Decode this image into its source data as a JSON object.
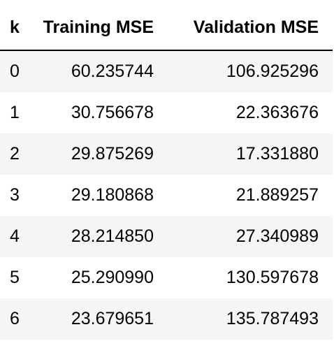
{
  "table": {
    "headers": {
      "k": "k",
      "training": "Training MSE",
      "validation": "Validation MSE"
    },
    "rows": [
      {
        "k": "0",
        "training": "60.235744",
        "validation": "106.925296"
      },
      {
        "k": "1",
        "training": "30.756678",
        "validation": "22.363676"
      },
      {
        "k": "2",
        "training": "29.875269",
        "validation": "17.331880"
      },
      {
        "k": "3",
        "training": "29.180868",
        "validation": "21.889257"
      },
      {
        "k": "4",
        "training": "28.214850",
        "validation": "27.340989"
      },
      {
        "k": "5",
        "training": "25.290990",
        "validation": "130.597678"
      },
      {
        "k": "6",
        "training": "23.679651",
        "validation": "135.787493"
      }
    ]
  }
}
